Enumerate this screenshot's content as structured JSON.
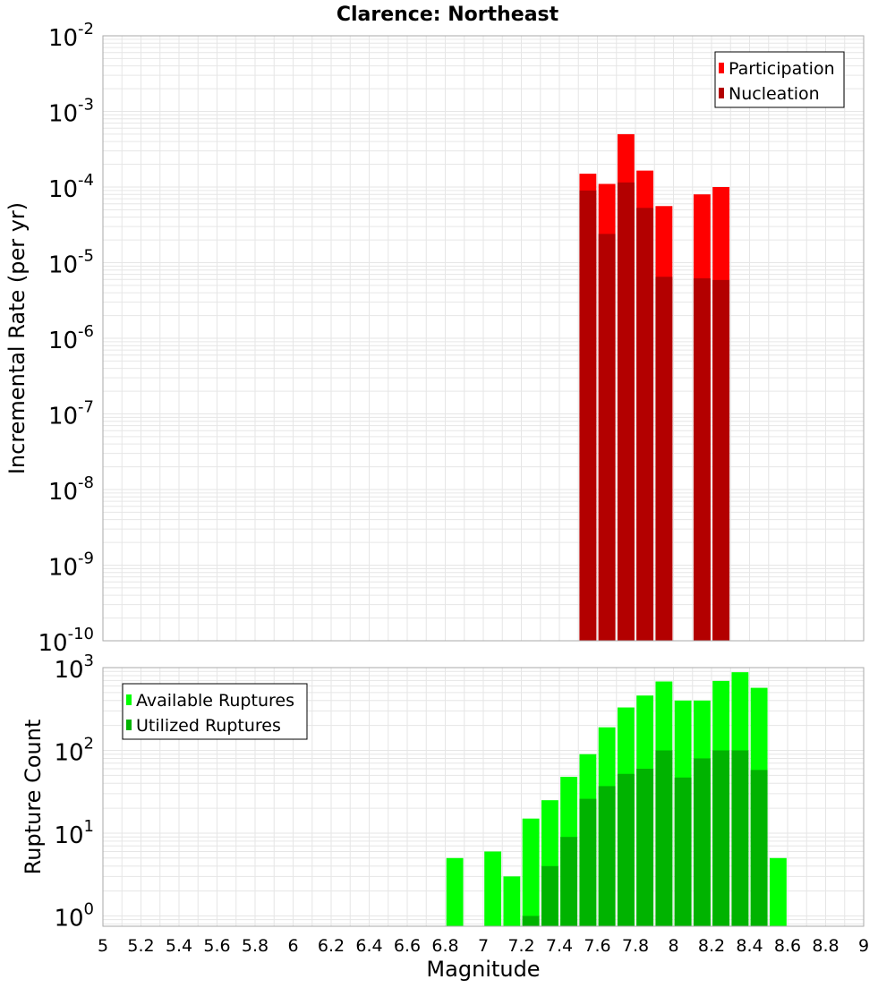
{
  "title": "Clarence: Northeast",
  "chart_data": [
    {
      "type": "bar",
      "panel": "top",
      "title": "Clarence: Northeast",
      "xlabel": "",
      "ylabel": "Incremental Rate (per yr)",
      "y_scale": "log",
      "ylim": [
        1e-10,
        0.01
      ],
      "y_tick_exponents": [
        -10,
        -9,
        -8,
        -7,
        -6,
        -5,
        -4,
        -3,
        -2
      ],
      "y_tick_base": "10",
      "xlim": [
        5,
        9
      ],
      "bin_width": 0.1,
      "grid": true,
      "legend_position": "top-right",
      "x": [
        7.55,
        7.65,
        7.75,
        7.85,
        7.95,
        8.05,
        8.15,
        8.25
      ],
      "series": [
        {
          "name": "Participation",
          "color": "#ff0000",
          "values": [
            0.00015,
            0.00011,
            0.0005,
            0.000165,
            5.6e-05,
            0,
            8e-05,
            0.0001
          ]
        },
        {
          "name": "Nucleation",
          "color": "#b30000",
          "values": [
            9e-05,
            2.4e-05,
            0.000115,
            5.3e-05,
            6.5e-06,
            0,
            6.2e-06,
            5.9e-06
          ]
        }
      ]
    },
    {
      "type": "bar",
      "panel": "bottom",
      "xlabel": "Magnitude",
      "ylabel": "Rupture Count",
      "y_scale": "log",
      "ylim": [
        0.75,
        1000
      ],
      "y_tick_exponents": [
        0,
        1,
        2,
        3
      ],
      "y_tick_base": "10",
      "xlim": [
        5,
        9
      ],
      "x_tick_labels": [
        "5",
        "5.2",
        "5.4",
        "5.6",
        "5.8",
        "6",
        "6.2",
        "6.4",
        "6.6",
        "6.8",
        "7",
        "7.2",
        "7.4",
        "7.6",
        "7.8",
        "8",
        "8.2",
        "8.4",
        "8.6",
        "8.8",
        "9"
      ],
      "bin_width": 0.1,
      "grid": true,
      "legend_position": "top-left",
      "x": [
        6.85,
        6.95,
        7.05,
        7.15,
        7.25,
        7.35,
        7.45,
        7.55,
        7.65,
        7.75,
        7.85,
        7.95,
        8.05,
        8.15,
        8.25,
        8.35,
        8.45,
        8.55
      ],
      "series": [
        {
          "name": "Available Ruptures",
          "color": "#00ff00",
          "values": [
            5,
            0,
            6,
            3,
            15,
            25,
            48,
            90,
            190,
            330,
            460,
            680,
            400,
            400,
            690,
            880,
            570,
            5
          ]
        },
        {
          "name": "Utilized Ruptures",
          "color": "#00b300",
          "values": [
            0,
            0,
            0,
            0,
            1,
            4,
            9,
            26,
            37,
            52,
            60,
            100,
            47,
            80,
            100,
            100,
            58,
            0
          ]
        }
      ]
    }
  ]
}
